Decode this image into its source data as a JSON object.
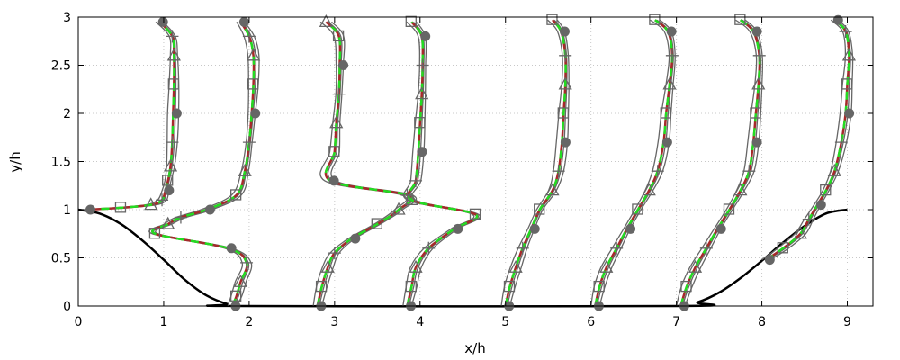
{
  "chart_data": {
    "type": "line",
    "title": "",
    "xlabel": "x/h",
    "ylabel": "y/h",
    "xlim": [
      0,
      9.3
    ],
    "ylim": [
      0,
      3
    ],
    "xticks": [
      "0",
      "1",
      "2",
      "3",
      "4",
      "5",
      "6",
      "7",
      "8",
      "9"
    ],
    "yticks": [
      "0",
      "0.5",
      "1",
      "1.5",
      "2",
      "2.5",
      "3"
    ],
    "grid": true,
    "legend": "none",
    "colors": {
      "wall": "#000000",
      "red_series": "#a52a2a",
      "green_series": "#22dd22",
      "marker_series": "#666666"
    },
    "wall": {
      "x": [
        0,
        0.25,
        0.5,
        0.75,
        1.0,
        1.25,
        1.5,
        1.75,
        1.93,
        7.0,
        7.25,
        7.5,
        7.75,
        8.0,
        8.25,
        8.5,
        8.75,
        9.0
      ],
      "y": [
        1.0,
        0.96,
        0.85,
        0.68,
        0.48,
        0.27,
        0.11,
        0.02,
        0.0,
        0.0,
        0.04,
        0.14,
        0.29,
        0.47,
        0.66,
        0.83,
        0.96,
        1.0
      ]
    },
    "stations": [
      {
        "x0": 0.05,
        "y": [
          1.0,
          1.02,
          1.05,
          1.1,
          1.2,
          1.3,
          1.45,
          1.7,
          2.0,
          2.3,
          2.6,
          2.8,
          2.95
        ],
        "x": [
          0.1,
          0.5,
          0.85,
          0.98,
          1.02,
          1.05,
          1.08,
          1.1,
          1.11,
          1.12,
          1.12,
          1.1,
          0.95
        ]
      },
      {
        "x0": 1.93,
        "y": [
          0.0,
          0.1,
          0.25,
          0.45,
          0.6,
          0.75,
          0.85,
          0.92,
          1.0,
          1.15,
          1.4,
          1.7,
          2.0,
          2.3,
          2.6,
          2.8,
          2.95
        ],
        "x": [
          1.8,
          1.85,
          1.9,
          1.97,
          1.75,
          0.9,
          1.05,
          1.2,
          1.5,
          1.85,
          1.95,
          2.0,
          2.03,
          2.05,
          2.05,
          2.0,
          1.9
        ]
      },
      {
        "x0": 2.9,
        "y": [
          0.0,
          0.2,
          0.4,
          0.55,
          0.7,
          0.85,
          1.0,
          1.15,
          1.3,
          1.6,
          1.9,
          2.2,
          2.5,
          2.8,
          2.95
        ],
        "x": [
          2.8,
          2.85,
          2.92,
          3.0,
          3.2,
          3.5,
          3.75,
          3.85,
          2.95,
          3.0,
          3.02,
          3.05,
          3.06,
          3.05,
          2.9
        ]
      },
      {
        "x0": 3.95,
        "y": [
          0.0,
          0.2,
          0.4,
          0.6,
          0.8,
          0.95,
          1.1,
          1.3,
          1.6,
          1.9,
          2.2,
          2.5,
          2.8,
          2.95
        ],
        "x": [
          3.85,
          3.9,
          3.95,
          4.1,
          4.4,
          4.65,
          3.9,
          3.95,
          3.98,
          4.0,
          4.02,
          4.03,
          4.02,
          3.9
        ]
      },
      {
        "x0": 4.9,
        "y": [
          0.0,
          0.2,
          0.4,
          0.6,
          0.8,
          1.0,
          1.2,
          1.4,
          1.7,
          2.0,
          2.3,
          2.6,
          2.85,
          2.97
        ],
        "x": [
          5.0,
          5.05,
          5.12,
          5.2,
          5.3,
          5.4,
          5.55,
          5.62,
          5.66,
          5.68,
          5.7,
          5.7,
          5.65,
          5.55
        ]
      },
      {
        "x0": 5.9,
        "y": [
          0.0,
          0.2,
          0.4,
          0.6,
          0.8,
          1.0,
          1.2,
          1.4,
          1.7,
          2.0,
          2.3,
          2.6,
          2.85,
          2.97
        ],
        "x": [
          6.05,
          6.1,
          6.18,
          6.3,
          6.42,
          6.55,
          6.68,
          6.78,
          6.85,
          6.88,
          6.92,
          6.95,
          6.9,
          6.75
        ]
      },
      {
        "x0": 6.9,
        "y": [
          0.0,
          0.2,
          0.4,
          0.6,
          0.8,
          1.0,
          1.2,
          1.4,
          1.7,
          2.0,
          2.3,
          2.6,
          2.85,
          2.97
        ],
        "x": [
          7.05,
          7.12,
          7.22,
          7.35,
          7.48,
          7.62,
          7.75,
          7.85,
          7.9,
          7.93,
          7.96,
          7.97,
          7.9,
          7.75
        ]
      },
      {
        "x0": 7.9,
        "y": [
          0.48,
          0.6,
          0.75,
          0.9,
          1.05,
          1.2,
          1.4,
          1.7,
          2.0,
          2.3,
          2.6,
          2.85,
          2.97
        ],
        "x": [
          8.05,
          8.25,
          8.45,
          8.55,
          8.65,
          8.75,
          8.85,
          8.93,
          8.98,
          9.0,
          9.02,
          8.98,
          8.85
        ]
      }
    ]
  }
}
